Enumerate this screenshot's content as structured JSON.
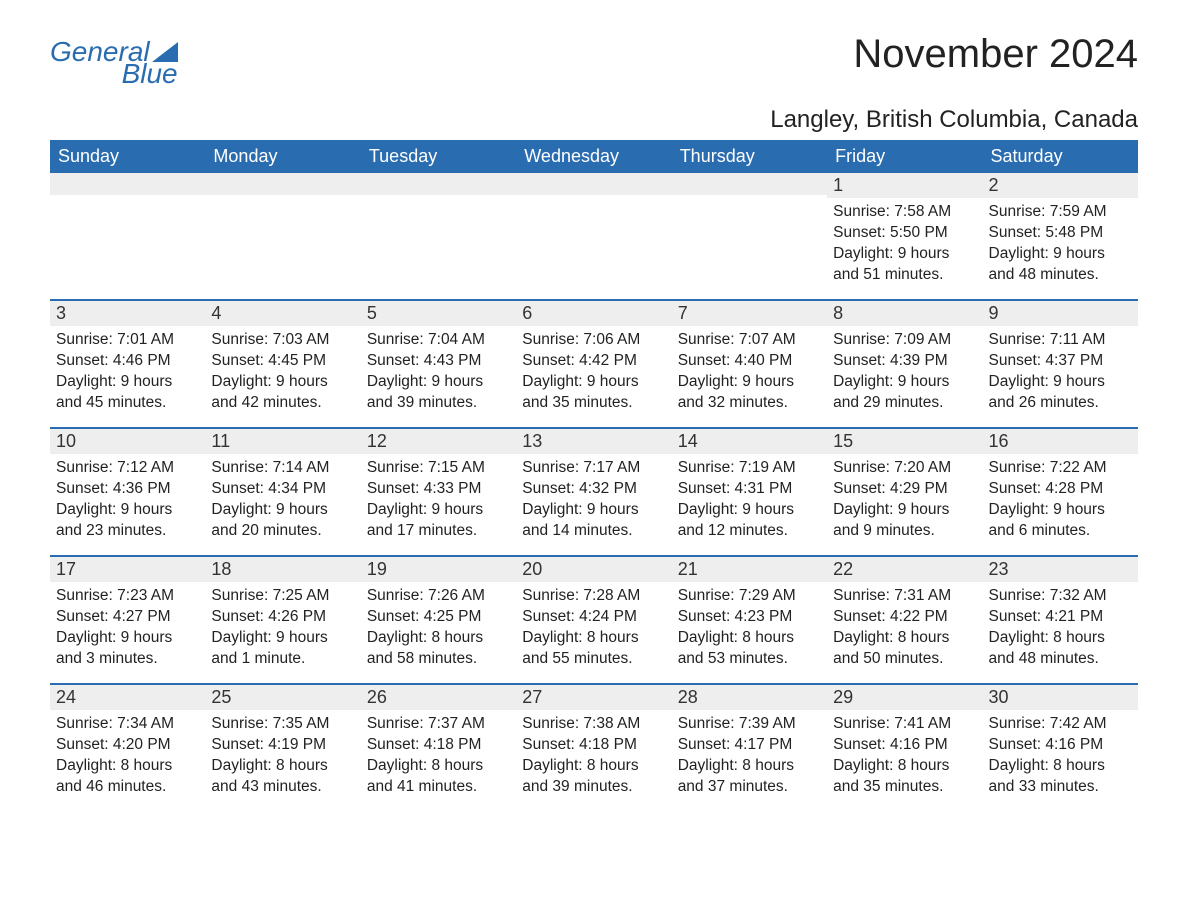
{
  "logo": {
    "word1": "General",
    "word2": "Blue"
  },
  "title": "November 2024",
  "location": "Langley, British Columbia, Canada",
  "colors": {
    "brand": "#2a6cb0",
    "header_bg": "#2a6cb0",
    "header_fg": "#ffffff",
    "daynum_bg": "#eeeeee",
    "page_bg": "#ffffff",
    "text": "#222222"
  },
  "fonts": {
    "title_size_pt": 30,
    "location_size_pt": 18,
    "weekday_size_pt": 14,
    "daynum_size_pt": 14,
    "body_size_pt": 12
  },
  "weekdays": [
    "Sunday",
    "Monday",
    "Tuesday",
    "Wednesday",
    "Thursday",
    "Friday",
    "Saturday"
  ],
  "weeks": [
    [
      null,
      null,
      null,
      null,
      null,
      {
        "n": "1",
        "sunrise": "Sunrise: 7:58 AM",
        "sunset": "Sunset: 5:50 PM",
        "daylight": "Daylight: 9 hours and 51 minutes."
      },
      {
        "n": "2",
        "sunrise": "Sunrise: 7:59 AM",
        "sunset": "Sunset: 5:48 PM",
        "daylight": "Daylight: 9 hours and 48 minutes."
      }
    ],
    [
      {
        "n": "3",
        "sunrise": "Sunrise: 7:01 AM",
        "sunset": "Sunset: 4:46 PM",
        "daylight": "Daylight: 9 hours and 45 minutes."
      },
      {
        "n": "4",
        "sunrise": "Sunrise: 7:03 AM",
        "sunset": "Sunset: 4:45 PM",
        "daylight": "Daylight: 9 hours and 42 minutes."
      },
      {
        "n": "5",
        "sunrise": "Sunrise: 7:04 AM",
        "sunset": "Sunset: 4:43 PM",
        "daylight": "Daylight: 9 hours and 39 minutes."
      },
      {
        "n": "6",
        "sunrise": "Sunrise: 7:06 AM",
        "sunset": "Sunset: 4:42 PM",
        "daylight": "Daylight: 9 hours and 35 minutes."
      },
      {
        "n": "7",
        "sunrise": "Sunrise: 7:07 AM",
        "sunset": "Sunset: 4:40 PM",
        "daylight": "Daylight: 9 hours and 32 minutes."
      },
      {
        "n": "8",
        "sunrise": "Sunrise: 7:09 AM",
        "sunset": "Sunset: 4:39 PM",
        "daylight": "Daylight: 9 hours and 29 minutes."
      },
      {
        "n": "9",
        "sunrise": "Sunrise: 7:11 AM",
        "sunset": "Sunset: 4:37 PM",
        "daylight": "Daylight: 9 hours and 26 minutes."
      }
    ],
    [
      {
        "n": "10",
        "sunrise": "Sunrise: 7:12 AM",
        "sunset": "Sunset: 4:36 PM",
        "daylight": "Daylight: 9 hours and 23 minutes."
      },
      {
        "n": "11",
        "sunrise": "Sunrise: 7:14 AM",
        "sunset": "Sunset: 4:34 PM",
        "daylight": "Daylight: 9 hours and 20 minutes."
      },
      {
        "n": "12",
        "sunrise": "Sunrise: 7:15 AM",
        "sunset": "Sunset: 4:33 PM",
        "daylight": "Daylight: 9 hours and 17 minutes."
      },
      {
        "n": "13",
        "sunrise": "Sunrise: 7:17 AM",
        "sunset": "Sunset: 4:32 PM",
        "daylight": "Daylight: 9 hours and 14 minutes."
      },
      {
        "n": "14",
        "sunrise": "Sunrise: 7:19 AM",
        "sunset": "Sunset: 4:31 PM",
        "daylight": "Daylight: 9 hours and 12 minutes."
      },
      {
        "n": "15",
        "sunrise": "Sunrise: 7:20 AM",
        "sunset": "Sunset: 4:29 PM",
        "daylight": "Daylight: 9 hours and 9 minutes."
      },
      {
        "n": "16",
        "sunrise": "Sunrise: 7:22 AM",
        "sunset": "Sunset: 4:28 PM",
        "daylight": "Daylight: 9 hours and 6 minutes."
      }
    ],
    [
      {
        "n": "17",
        "sunrise": "Sunrise: 7:23 AM",
        "sunset": "Sunset: 4:27 PM",
        "daylight": "Daylight: 9 hours and 3 minutes."
      },
      {
        "n": "18",
        "sunrise": "Sunrise: 7:25 AM",
        "sunset": "Sunset: 4:26 PM",
        "daylight": "Daylight: 9 hours and 1 minute."
      },
      {
        "n": "19",
        "sunrise": "Sunrise: 7:26 AM",
        "sunset": "Sunset: 4:25 PM",
        "daylight": "Daylight: 8 hours and 58 minutes."
      },
      {
        "n": "20",
        "sunrise": "Sunrise: 7:28 AM",
        "sunset": "Sunset: 4:24 PM",
        "daylight": "Daylight: 8 hours and 55 minutes."
      },
      {
        "n": "21",
        "sunrise": "Sunrise: 7:29 AM",
        "sunset": "Sunset: 4:23 PM",
        "daylight": "Daylight: 8 hours and 53 minutes."
      },
      {
        "n": "22",
        "sunrise": "Sunrise: 7:31 AM",
        "sunset": "Sunset: 4:22 PM",
        "daylight": "Daylight: 8 hours and 50 minutes."
      },
      {
        "n": "23",
        "sunrise": "Sunrise: 7:32 AM",
        "sunset": "Sunset: 4:21 PM",
        "daylight": "Daylight: 8 hours and 48 minutes."
      }
    ],
    [
      {
        "n": "24",
        "sunrise": "Sunrise: 7:34 AM",
        "sunset": "Sunset: 4:20 PM",
        "daylight": "Daylight: 8 hours and 46 minutes."
      },
      {
        "n": "25",
        "sunrise": "Sunrise: 7:35 AM",
        "sunset": "Sunset: 4:19 PM",
        "daylight": "Daylight: 8 hours and 43 minutes."
      },
      {
        "n": "26",
        "sunrise": "Sunrise: 7:37 AM",
        "sunset": "Sunset: 4:18 PM",
        "daylight": "Daylight: 8 hours and 41 minutes."
      },
      {
        "n": "27",
        "sunrise": "Sunrise: 7:38 AM",
        "sunset": "Sunset: 4:18 PM",
        "daylight": "Daylight: 8 hours and 39 minutes."
      },
      {
        "n": "28",
        "sunrise": "Sunrise: 7:39 AM",
        "sunset": "Sunset: 4:17 PM",
        "daylight": "Daylight: 8 hours and 37 minutes."
      },
      {
        "n": "29",
        "sunrise": "Sunrise: 7:41 AM",
        "sunset": "Sunset: 4:16 PM",
        "daylight": "Daylight: 8 hours and 35 minutes."
      },
      {
        "n": "30",
        "sunrise": "Sunrise: 7:42 AM",
        "sunset": "Sunset: 4:16 PM",
        "daylight": "Daylight: 8 hours and 33 minutes."
      }
    ]
  ]
}
